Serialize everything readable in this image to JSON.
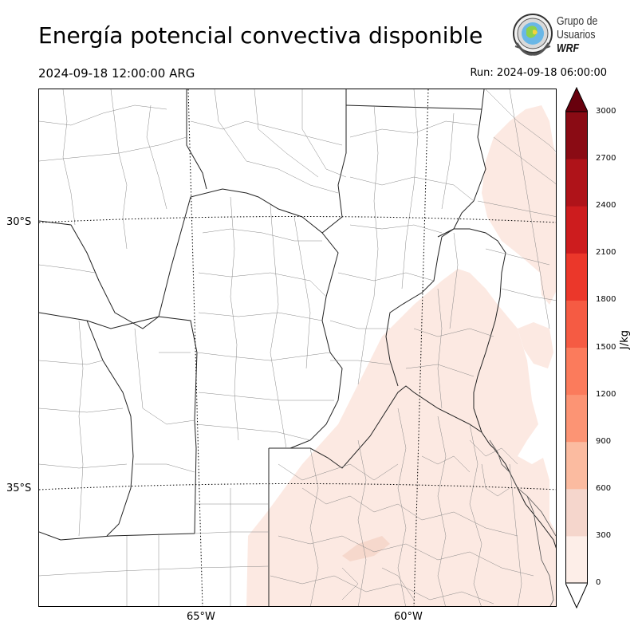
{
  "title": "Energía potencial convectiva disponible",
  "valid_time": "2024-09-18 12:00:00 ARG",
  "run_time": "Run: 2024-09-18 06:00:00",
  "logo": {
    "line1": "Grupo de",
    "line2": "Usuarios",
    "line3": "WRF"
  },
  "map": {
    "lat_labels": [
      "30°S",
      "35°S"
    ],
    "lon_labels": [
      "65°W",
      "60°W"
    ],
    "gridlines": "dotted",
    "field_colors": {
      "light": "#fce9e2",
      "medium": "#f6d8cc"
    }
  },
  "colorbar": {
    "units": "J/kg",
    "extend": "max",
    "ticks": [
      "3000",
      "2700",
      "2400",
      "2100",
      "1800",
      "1500",
      "1200",
      "900",
      "600",
      "300",
      "0"
    ],
    "colors": [
      "#fdeee8",
      "#f5d6cc",
      "#fbbba0",
      "#fc9474",
      "#fb7b5c",
      "#f55b43",
      "#eb372a",
      "#cd1c1e",
      "#af1319",
      "#8a0b14"
    ],
    "extend_color": "#68000d"
  }
}
